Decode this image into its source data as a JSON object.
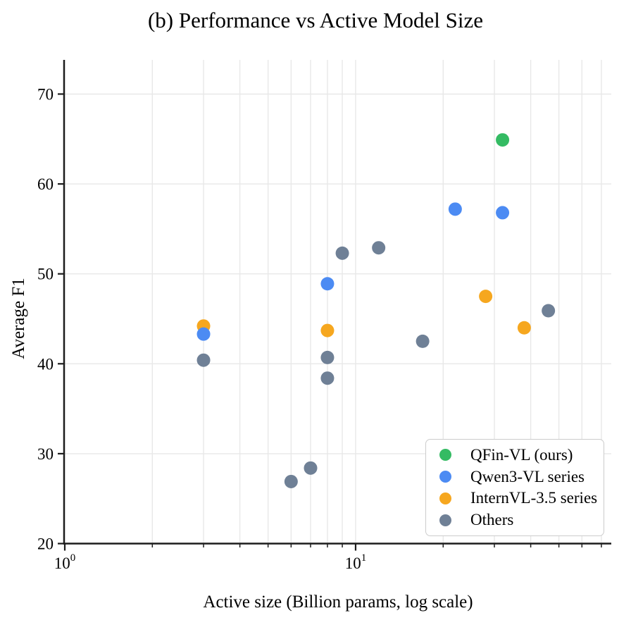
{
  "chart_data": {
    "type": "scatter",
    "title": "(b) Performance vs Active Model Size",
    "xlabel": "Active size (Billion params, log scale)",
    "ylabel": "Average F1",
    "x_scale": "log",
    "xlim": [
      1,
      75.7
    ],
    "ylim": [
      20,
      73.8
    ],
    "grid": true,
    "x_major_ticks": [
      {
        "value": 1,
        "label_base": "10",
        "label_exp": "0"
      },
      {
        "value": 10,
        "label_base": "10",
        "label_exp": "1"
      }
    ],
    "x_minor_ticks": [
      2,
      3,
      4,
      5,
      6,
      7,
      8,
      9,
      20,
      30,
      40,
      50,
      60,
      70
    ],
    "y_ticks": [
      20,
      30,
      40,
      50,
      60,
      70
    ],
    "legend_position": "lower right",
    "series": [
      {
        "name": "QFin-VL (ours)",
        "color": "#34bb63",
        "points": [
          {
            "x": 32,
            "y": 64.9
          }
        ]
      },
      {
        "name": "Qwen3-VL series",
        "color": "#4c8bf3",
        "points": [
          {
            "x": 3,
            "y": 43.3
          },
          {
            "x": 8,
            "y": 48.9
          },
          {
            "x": 22,
            "y": 57.2
          },
          {
            "x": 32,
            "y": 56.8
          }
        ]
      },
      {
        "name": "InternVL-3.5 series",
        "color": "#f6a71f",
        "points": [
          {
            "x": 3,
            "y": 44.2
          },
          {
            "x": 8,
            "y": 43.7
          },
          {
            "x": 28,
            "y": 47.5
          },
          {
            "x": 38,
            "y": 44.0
          }
        ]
      },
      {
        "name": "Others",
        "color": "#6f8096",
        "points": [
          {
            "x": 3,
            "y": 40.4
          },
          {
            "x": 6,
            "y": 26.9
          },
          {
            "x": 7,
            "y": 28.4
          },
          {
            "x": 8,
            "y": 40.7
          },
          {
            "x": 8,
            "y": 38.4
          },
          {
            "x": 9,
            "y": 52.3
          },
          {
            "x": 12,
            "y": 52.9
          },
          {
            "x": 17,
            "y": 42.5
          },
          {
            "x": 46,
            "y": 45.9
          }
        ]
      }
    ]
  }
}
